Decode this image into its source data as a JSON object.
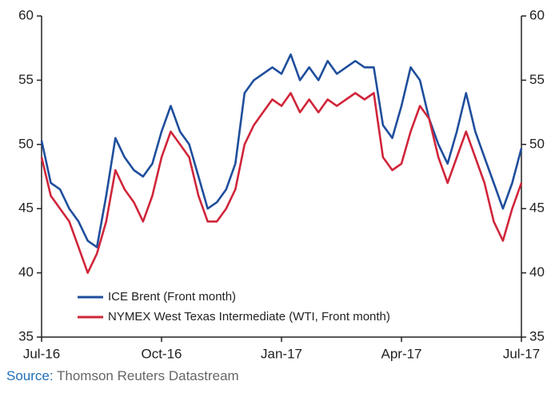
{
  "chart_data": {
    "type": "line",
    "categories": [
      "Jul-16",
      null,
      null,
      null,
      null,
      null,
      null,
      null,
      null,
      null,
      null,
      null,
      null,
      "Oct-16",
      null,
      null,
      null,
      null,
      null,
      null,
      null,
      null,
      null,
      null,
      null,
      null,
      "Jan-17",
      null,
      null,
      null,
      null,
      null,
      null,
      null,
      null,
      null,
      null,
      null,
      null,
      "Apr-17",
      null,
      null,
      null,
      null,
      null,
      null,
      null,
      null,
      null,
      null,
      null,
      null,
      "Jul-17"
    ],
    "series": [
      {
        "name": "ICE Brent (Front month)",
        "color": "#1f4e9c",
        "values": [
          50.3,
          47,
          46.5,
          45,
          44,
          42.5,
          42,
          46,
          50.5,
          49,
          48,
          47.5,
          48.5,
          51,
          53,
          51,
          50,
          47.5,
          45,
          45.5,
          46.5,
          48.5,
          54,
          55,
          55.5,
          56,
          55.5,
          57,
          55,
          56,
          55,
          56.5,
          55.5,
          56,
          56.5,
          56,
          56,
          51.5,
          50.5,
          53,
          56,
          55,
          52,
          50,
          48.5,
          51,
          54,
          51,
          49,
          47,
          45,
          47,
          49.7
        ]
      },
      {
        "name": "NYMEX West Texas Intermediate (WTI, Front month)",
        "color": "#d0253a",
        "values": [
          49,
          46,
          45,
          44,
          42,
          40,
          41.5,
          44,
          48,
          46.5,
          45.5,
          44,
          46,
          49,
          51,
          50,
          49,
          46,
          44,
          44,
          45,
          46.5,
          50,
          51.5,
          52.5,
          53.5,
          53,
          54,
          52.5,
          53.5,
          52.5,
          53.5,
          53,
          53.5,
          54,
          53.5,
          54,
          49,
          48,
          48.5,
          51,
          53,
          52,
          49,
          47,
          49,
          51,
          49,
          47,
          44,
          42.5,
          45,
          47
        ]
      }
    ],
    "ylim": [
      35,
      60
    ],
    "yticks": [
      35,
      40,
      45,
      50,
      55,
      60
    ],
    "y2lim": [
      35,
      60
    ],
    "y2ticks": [
      35,
      40,
      45,
      50,
      55,
      60
    ],
    "legend": "lower left",
    "source": {
      "label": "Source:",
      "text": "Thomson Reuters Datastream"
    }
  }
}
